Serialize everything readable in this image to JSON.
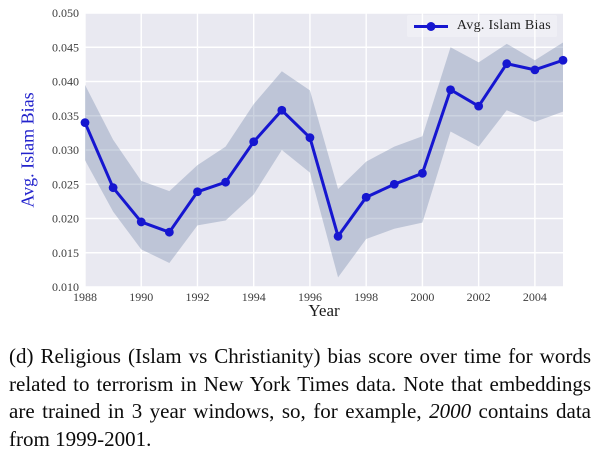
{
  "chart_data": {
    "type": "line",
    "xlabel": "Year",
    "ylabel": "Avg. Islam Bias",
    "legend": [
      "Avg. Islam Bias"
    ],
    "legend_position": "upper right",
    "grid": true,
    "x": [
      1988,
      1989,
      1990,
      1991,
      1992,
      1993,
      1994,
      1995,
      1996,
      1997,
      1998,
      1999,
      2000,
      2001,
      2002,
      2003,
      2004,
      2005
    ],
    "series": [
      {
        "name": "Avg. Islam Bias",
        "values": [
          0.034,
          0.0245,
          0.0195,
          0.018,
          0.0239,
          0.0253,
          0.0312,
          0.0358,
          0.0318,
          0.0174,
          0.0231,
          0.025,
          0.0266,
          0.0388,
          0.0364,
          0.0426,
          0.0417,
          0.0431
        ]
      }
    ],
    "band": {
      "lower": [
        0.0285,
        0.021,
        0.0155,
        0.0135,
        0.019,
        0.0197,
        0.0235,
        0.03,
        0.0267,
        0.0114,
        0.017,
        0.0185,
        0.0194,
        0.0327,
        0.0305,
        0.0358,
        0.0341,
        0.0356
      ],
      "upper": [
        0.0395,
        0.0315,
        0.0255,
        0.024,
        0.0278,
        0.0305,
        0.0367,
        0.0415,
        0.0387,
        0.0243,
        0.0283,
        0.0305,
        0.032,
        0.045,
        0.0428,
        0.0455,
        0.0431,
        0.0457
      ]
    },
    "xlim": [
      1988,
      2005
    ],
    "ylim": [
      0.01,
      0.05
    ],
    "xticks": [
      1988,
      1990,
      1992,
      1994,
      1996,
      1998,
      2000,
      2002,
      2004
    ],
    "yticks": [
      0.01,
      0.015,
      0.02,
      0.025,
      0.03,
      0.035,
      0.04,
      0.045,
      0.05
    ],
    "ytick_labels": [
      "0.010",
      "0.015",
      "0.020",
      "0.025",
      "0.030",
      "0.035",
      "0.040",
      "0.045",
      "0.050"
    ],
    "colors": {
      "line": "#1616d0",
      "band": "#7a8bae",
      "plot_bg": "#e9e9f1",
      "grid": "#ffffff",
      "tick": "#3d3d3d",
      "ylabel": "#2222cc"
    }
  },
  "figure": {
    "caption": {
      "before_italic": "(d) Religious (Islam vs Christianity) bias score over time for words related to terrorism in New York Times data. Note that embeddings are trained in 3 year windows, so, for example, ",
      "italic": "2000",
      "after_italic": " contains data from 1999-2001."
    }
  }
}
